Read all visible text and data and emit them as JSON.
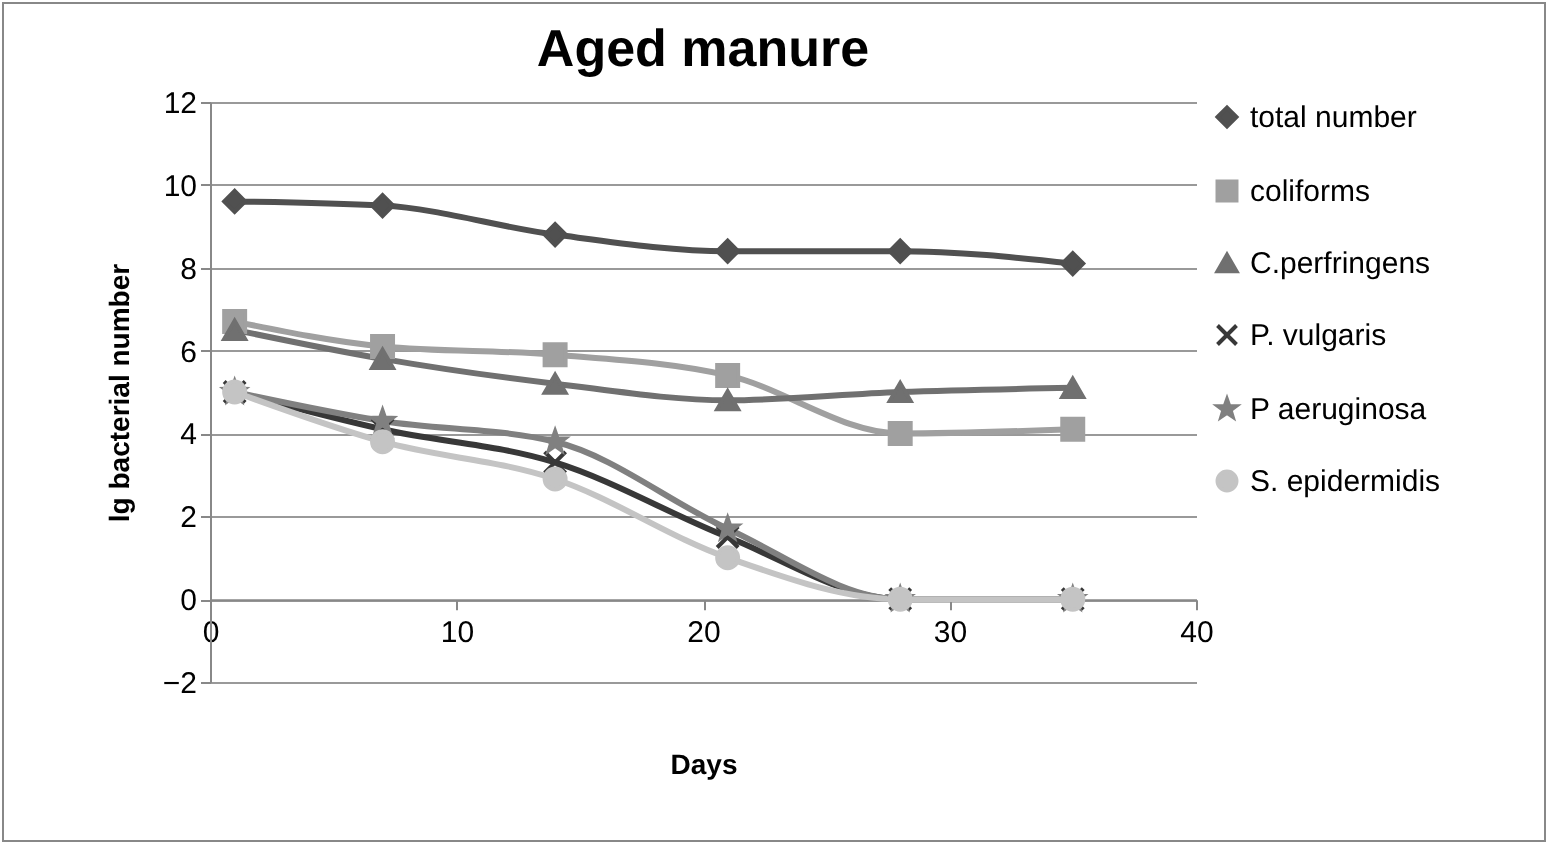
{
  "chart_data": {
    "type": "line",
    "title": "Aged manure",
    "xlabel": "Days",
    "ylabel": "lg bacterial number",
    "x": [
      1,
      7,
      14,
      21,
      28,
      35
    ],
    "series": [
      {
        "name": "total number",
        "color": "#505050",
        "marker": "diamond",
        "values": [
          9.6,
          9.5,
          8.8,
          8.4,
          8.4,
          8.1
        ]
      },
      {
        "name": "coliforms",
        "color": "#a0a0a0",
        "marker": "square",
        "values": [
          6.7,
          6.1,
          5.9,
          5.4,
          4.0,
          4.1
        ]
      },
      {
        "name": "C.perfringens",
        "color": "#707070",
        "marker": "triangle",
        "values": [
          6.5,
          5.8,
          5.2,
          4.8,
          5.0,
          5.1
        ]
      },
      {
        "name": "P. vulgaris",
        "color": "#383838",
        "marker": "cross",
        "values": [
          5.0,
          4.1,
          3.3,
          1.5,
          0,
          0
        ]
      },
      {
        "name": "P aeruginosa",
        "color": "#808080",
        "marker": "star",
        "values": [
          5.0,
          4.3,
          3.8,
          1.7,
          0,
          0
        ]
      },
      {
        "name": "S. epidermidis",
        "color": "#c4c4c4",
        "marker": "circle",
        "values": [
          5.0,
          3.8,
          2.9,
          1.0,
          0,
          0
        ]
      }
    ],
    "xlim": [
      0,
      40
    ],
    "xticks": [
      0,
      10,
      20,
      30,
      40
    ],
    "ylim": [
      -2,
      12
    ],
    "yticks": [
      -2,
      0,
      2,
      4,
      6,
      8,
      10,
      12
    ],
    "grid": "y",
    "legend": "right",
    "line_style": "solid"
  }
}
